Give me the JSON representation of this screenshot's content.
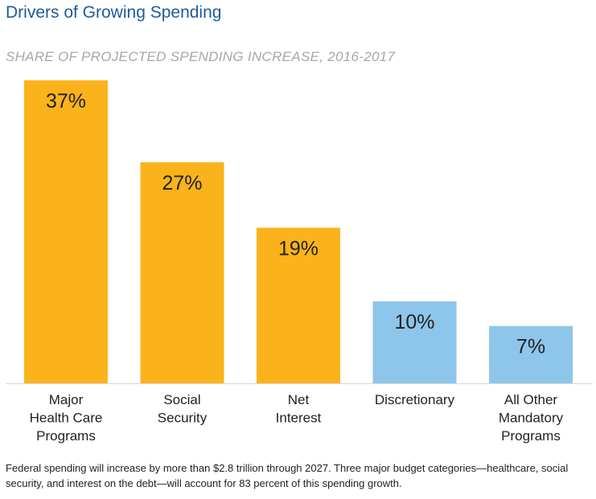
{
  "title": "Drivers of Growing Spending",
  "subtitle": "SHARE OF PROJECTED SPENDING INCREASE, 2016-2017",
  "caption": "Federal spending will increase by more than $2.8 trillion through 2027. Three major budget categories—healthcare, social security, and interest on the debt—will account for 83 percent of this spending growth.",
  "colors": {
    "primary_bar": "#fbb31b",
    "secondary_bar": "#8ec5ea",
    "title": "#1f5a9b",
    "subtitle": "#a7a7a7",
    "text": "#222222"
  },
  "chart_data": {
    "type": "bar",
    "categories": [
      [
        "Major",
        "Health Care",
        "Programs"
      ],
      [
        "Social",
        "Security"
      ],
      [
        "Net",
        "Interest"
      ],
      [
        "Discretionary"
      ],
      [
        "All Other",
        "Mandatory",
        "Programs"
      ]
    ],
    "values": [
      37,
      27,
      19,
      10,
      7
    ],
    "value_labels": [
      "37%",
      "27%",
      "19%",
      "10%",
      "7%"
    ],
    "bar_color_groups": [
      "primary",
      "primary",
      "primary",
      "secondary",
      "secondary"
    ],
    "title": "Drivers of Growing Spending",
    "subtitle": "SHARE OF PROJECTED SPENDING INCREASE, 2016-2017",
    "xlabel": "",
    "ylabel": "",
    "ylim": [
      0,
      37
    ],
    "grid": false,
    "legend": "none"
  }
}
